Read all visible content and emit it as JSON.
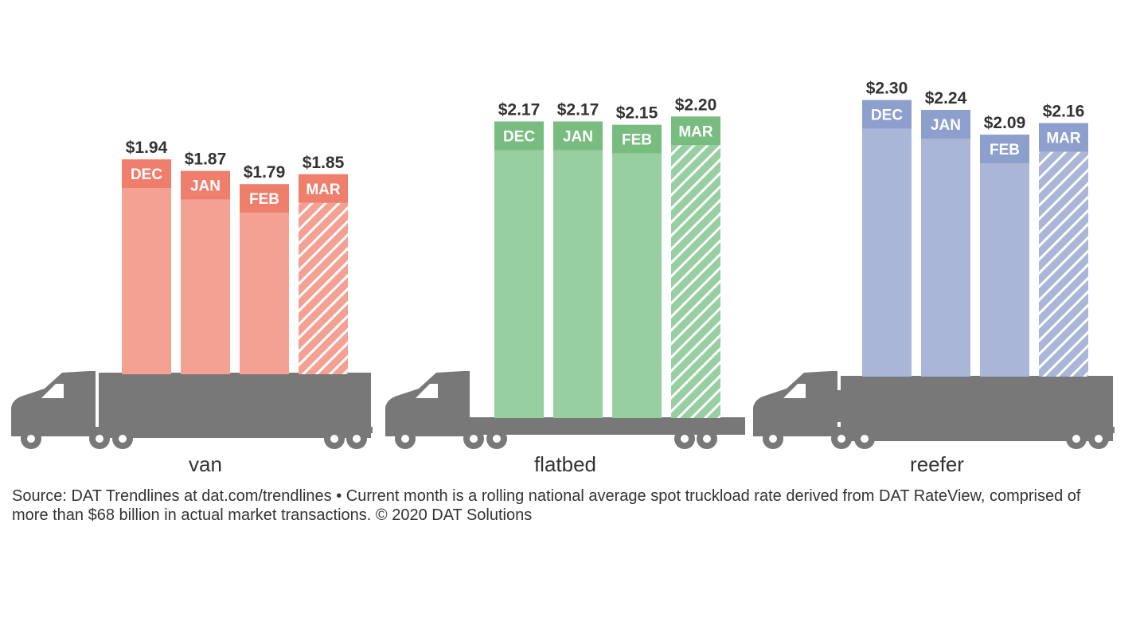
{
  "chart_data": {
    "type": "bar",
    "categories": [
      "DEC",
      "JAN",
      "FEB",
      "MAR"
    ],
    "series": [
      {
        "name": "van",
        "values": [
          1.94,
          1.87,
          1.79,
          1.85
        ],
        "labels": [
          "$1.94",
          "$1.87",
          "$1.79",
          "$1.85"
        ],
        "color": "#f4a193",
        "header_color": "#ef7e6c",
        "vehicle": "van-truck-icon"
      },
      {
        "name": "flatbed",
        "values": [
          2.17,
          2.17,
          2.15,
          2.2
        ],
        "labels": [
          "$2.17",
          "$2.17",
          "$2.15",
          "$2.20"
        ],
        "color": "#97cfa0",
        "header_color": "#78bc80",
        "vehicle": "flatbed-truck-icon"
      },
      {
        "name": "reefer",
        "values": [
          2.3,
          2.24,
          2.09,
          2.16
        ],
        "labels": [
          "$2.30",
          "$2.24",
          "$2.09",
          "$2.16"
        ],
        "color": "#a9b6d8",
        "header_color": "#8d9fcc",
        "vehicle": "reefer-truck-icon"
      }
    ],
    "current_month": "MAR",
    "current_month_style": "hatched",
    "truck_color": "#787878",
    "title": "",
    "xlabel": "",
    "ylabel": "",
    "grid": false,
    "legend": "none"
  },
  "source": "Source: DAT Trendlines at dat.com/trendlines • Current month is a rolling national average spot truckload rate derived from DAT RateView, comprised of more than $68 billion in actual market transactions. © 2020 DAT Solutions"
}
